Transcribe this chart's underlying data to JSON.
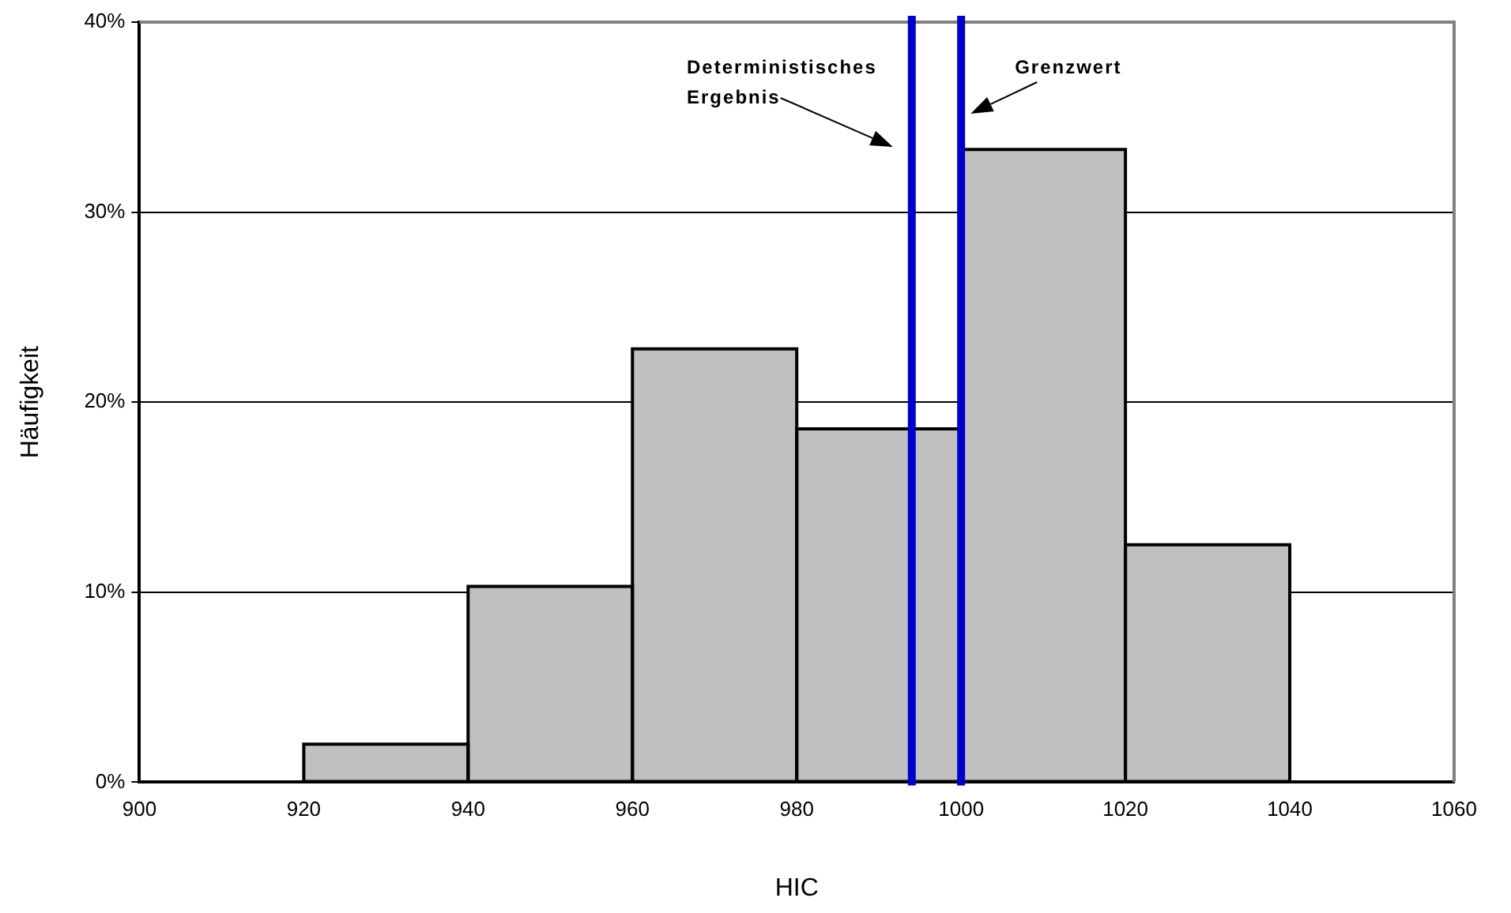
{
  "chart_data": {
    "type": "histogram",
    "xlabel": "HIC",
    "ylabel": "Häufigkeit",
    "bins": [
      920,
      940,
      960,
      980,
      1000,
      1020,
      1040
    ],
    "values": [
      2.0,
      10.3,
      22.8,
      18.6,
      33.3,
      12.5
    ],
    "color": "#c0c0c0",
    "xlim": [
      900,
      1060
    ],
    "xticks": [
      900,
      920,
      940,
      960,
      980,
      1000,
      1020,
      1040,
      1060
    ],
    "ylim": [
      0,
      40
    ],
    "yticks": [
      {
        "value": 0,
        "label": "0%"
      },
      {
        "value": 10,
        "label": "10%"
      },
      {
        "value": 20,
        "label": "20%"
      },
      {
        "value": 30,
        "label": "30%"
      },
      {
        "value": 40,
        "label": "40%"
      }
    ],
    "grid": "y",
    "legend": false,
    "ref_lines": [
      {
        "axis": "x",
        "value": 994,
        "label": "Deterministisches Ergebnis",
        "color": "#0000cc"
      },
      {
        "axis": "x",
        "value": 1000,
        "label": "Grenzwert",
        "color": "#0000cc"
      }
    ]
  }
}
